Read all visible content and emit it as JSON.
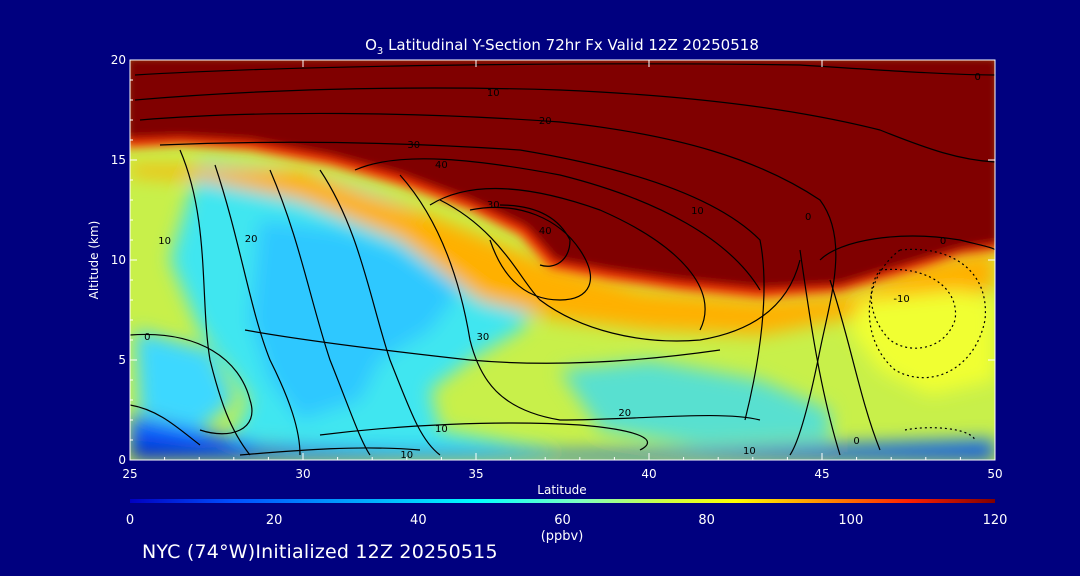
{
  "chart_data": {
    "type": "heatmap",
    "title_prefix": "O",
    "title_subscript": "3",
    "title_suffix": " Latitudinal Y-Section 72hr  Fx Valid 12Z 20250518",
    "xlabel": "Latitude",
    "ylabel": "Altitude (km)",
    "xlim": [
      25,
      50
    ],
    "ylim": [
      0,
      20
    ],
    "x_ticks": [
      25,
      30,
      35,
      40,
      45,
      50
    ],
    "y_ticks": [
      0,
      5,
      10,
      15,
      20
    ],
    "colorbar": {
      "min": 0,
      "max": 120,
      "ticks": [
        0,
        20,
        40,
        60,
        80,
        100,
        120
      ],
      "unit_label": "(ppbv)"
    },
    "colors": {
      "background": "#00007f",
      "scale": [
        "#0000ff",
        "#00aaff",
        "#00ffff",
        "#7fff7f",
        "#ffff00",
        "#ff8000",
        "#ff0000",
        "#800000"
      ]
    },
    "contour_labels": [
      {
        "text": "0",
        "lat": 44.6,
        "alt": 12.0
      },
      {
        "text": "0",
        "lat": 25.5,
        "alt": 6.0
      },
      {
        "text": "0",
        "lat": 49.5,
        "alt": 19.0
      },
      {
        "text": "0",
        "lat": 48.5,
        "alt": 10.8
      },
      {
        "text": "0",
        "lat": 46.0,
        "alt": 0.8
      },
      {
        "text": "10",
        "lat": 35.5,
        "alt": 18.2
      },
      {
        "text": "10",
        "lat": 26.0,
        "alt": 10.8
      },
      {
        "text": "10",
        "lat": 34.0,
        "alt": 1.4
      },
      {
        "text": "10",
        "lat": 33.0,
        "alt": 0.1
      },
      {
        "text": "10",
        "lat": 41.4,
        "alt": 12.3
      },
      {
        "text": "10",
        "lat": 42.9,
        "alt": 0.3
      },
      {
        "text": "-10",
        "lat": 47.3,
        "alt": 7.9
      },
      {
        "text": "20",
        "lat": 37.0,
        "alt": 16.8
      },
      {
        "text": "20",
        "lat": 28.5,
        "alt": 10.9
      },
      {
        "text": "20",
        "lat": 39.3,
        "alt": 2.2
      },
      {
        "text": "30",
        "lat": 33.2,
        "alt": 15.6
      },
      {
        "text": "30",
        "lat": 35.2,
        "alt": 6.0
      },
      {
        "text": "30",
        "lat": 35.5,
        "alt": 12.6
      },
      {
        "text": "40",
        "lat": 34.0,
        "alt": 14.6
      },
      {
        "text": "40",
        "lat": 37.0,
        "alt": 11.3
      }
    ]
  },
  "footer": {
    "text": "NYC (74°W)Initialized 12Z 20250515"
  }
}
